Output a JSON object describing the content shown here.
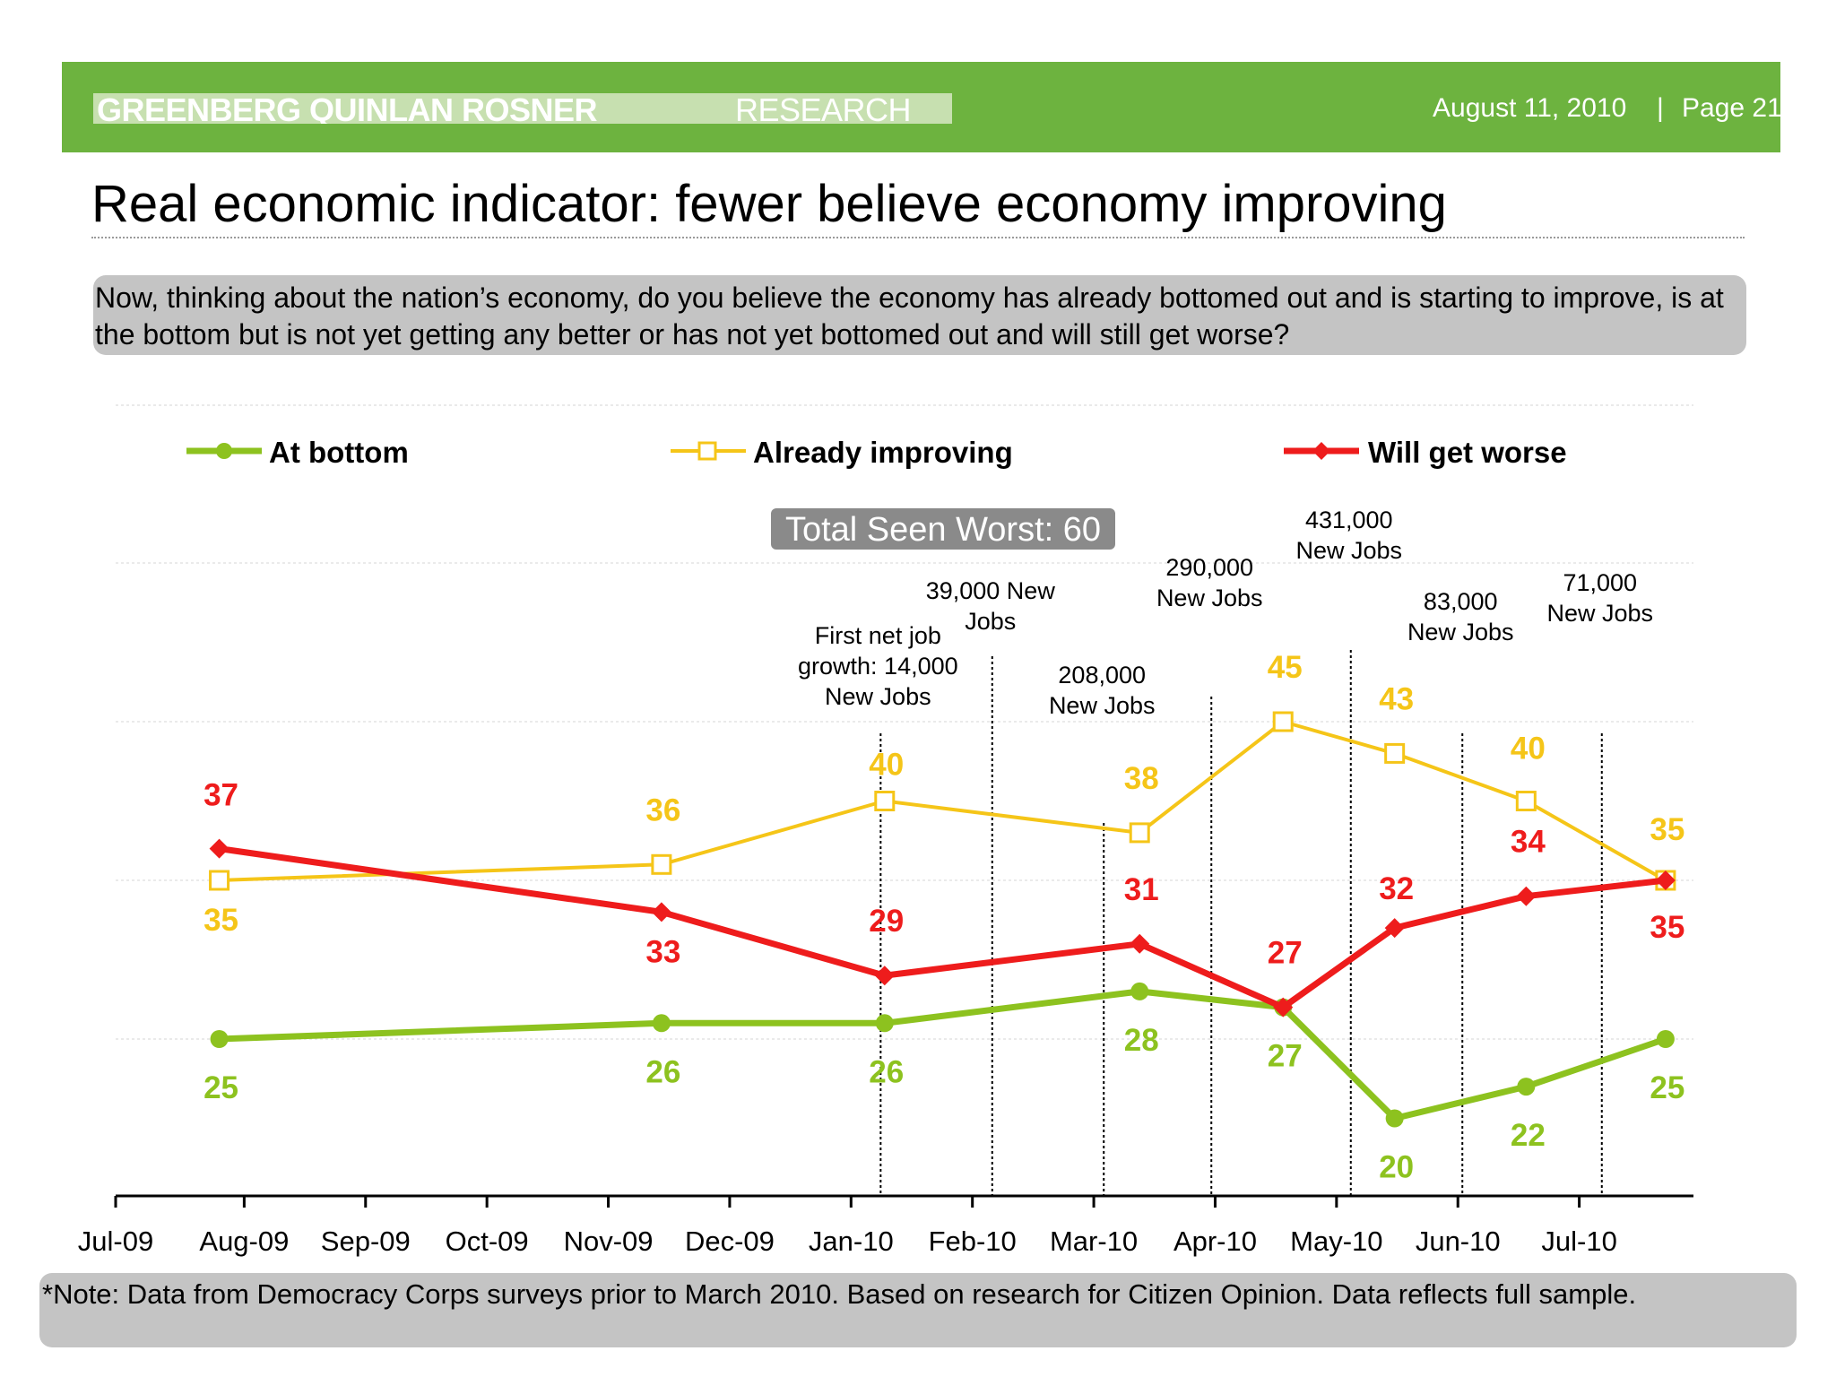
{
  "header": {
    "brand_strong": "GREENBERG QUINLAN ROSNER",
    "brand_light": "RESEARCH",
    "date": "August 11, 2010",
    "separator": "|",
    "page": "Page 21"
  },
  "title": "Real economic indicator: fewer believe economy improving",
  "question": "Now, thinking about the nation’s economy, do you believe the economy has already bottomed out and is starting to improve, is at the bottom but is not yet getting any better or has not yet bottomed out and will still get worse?",
  "note": "*Note: Data from Democracy Corps surveys prior to March 2010. Based on research for Citizen Opinion. Data reflects full sample.",
  "colors": {
    "header_green": "#6db33f",
    "at_bottom": "#8dc21f",
    "already_improving": "#f5c518",
    "will_get_worse": "#ee1c1c"
  },
  "chart_data": {
    "type": "line",
    "x_ticks": [
      "Jul-09",
      "Aug-09",
      "Sep-09",
      "Oct-09",
      "Nov-09",
      "Dec-09",
      "Jan-10",
      "Feb-10",
      "Mar-10",
      "Apr-10",
      "May-10",
      "Jun-10",
      "Jul-10"
    ],
    "x_dates": [
      "2009-07-27",
      "2009-11-15",
      "2010-01-10",
      "2010-03-15",
      "2010-04-20",
      "2010-05-18",
      "2010-06-20",
      "2010-07-25"
    ],
    "series": [
      {
        "name": "At bottom",
        "marker": "circle",
        "values": [
          25,
          26,
          26,
          28,
          27,
          20,
          22,
          25
        ]
      },
      {
        "name": "Already improving",
        "marker": "square",
        "values": [
          35,
          36,
          40,
          38,
          45,
          43,
          40,
          35
        ]
      },
      {
        "name": "Will get worse",
        "marker": "diamond",
        "values": [
          37,
          33,
          29,
          31,
          27,
          32,
          34,
          35
        ]
      }
    ],
    "badge": "Total Seen Worst: 60",
    "annotations": [
      {
        "date": "2010-01-09",
        "lines": [
          "First net job",
          "growth: 14,000",
          "New Jobs"
        ]
      },
      {
        "date": "2010-02-06",
        "lines": [
          "39,000 New",
          "Jobs"
        ]
      },
      {
        "date": "2010-03-06",
        "lines": [
          "208,000",
          "New Jobs"
        ]
      },
      {
        "date": "2010-04-02",
        "lines": [
          "290,000",
          "New Jobs"
        ]
      },
      {
        "date": "2010-05-07",
        "lines": [
          "431,000",
          "New Jobs"
        ]
      },
      {
        "date": "2010-06-04",
        "lines": [
          "83,000",
          "New Jobs"
        ]
      },
      {
        "date": "2010-07-09",
        "lines": [
          "71,000",
          "New Jobs"
        ]
      }
    ],
    "legend_position": "top",
    "grid": true
  }
}
